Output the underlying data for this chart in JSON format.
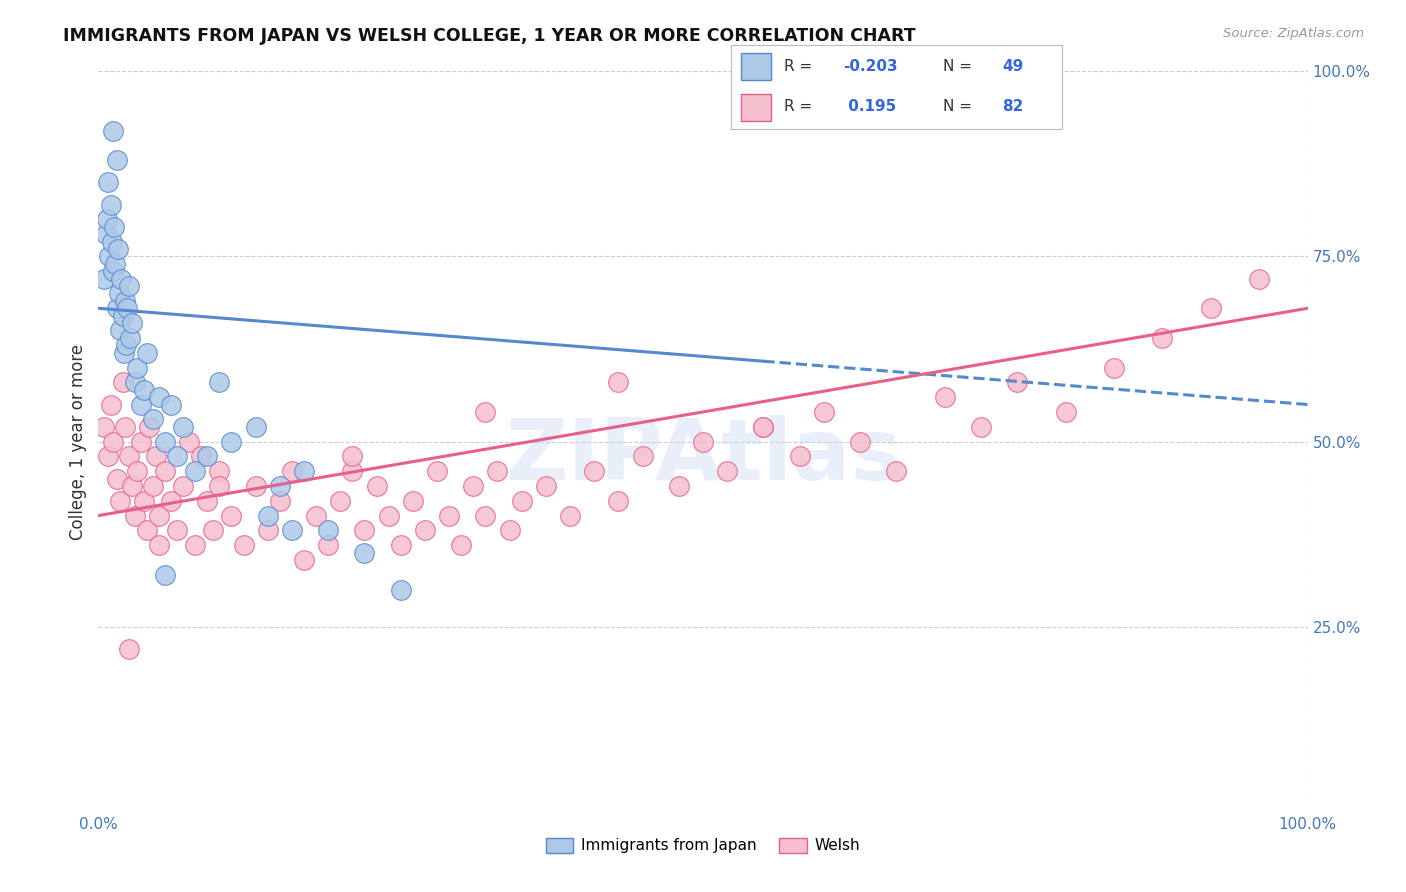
{
  "title": "IMMIGRANTS FROM JAPAN VS WELSH COLLEGE, 1 YEAR OR MORE CORRELATION CHART",
  "source_text": "Source: ZipAtlas.com",
  "ylabel": "College, 1 year or more",
  "xlim": [
    0.0,
    1.0
  ],
  "ylim": [
    0.0,
    1.0
  ],
  "legend_label1": "Immigrants from Japan",
  "legend_label2": "Welsh",
  "R1": -0.203,
  "N1": 49,
  "R2": 0.195,
  "N2": 82,
  "color1": "#adc9e8",
  "color2": "#f5bfce",
  "line_color1": "#5588cc",
  "line_color2": "#e8608a",
  "watermark": "ZIPAtlas",
  "background_color": "#ffffff",
  "grid_color": "#cccccc",
  "japan_x": [
    0.005,
    0.006,
    0.007,
    0.008,
    0.009,
    0.01,
    0.011,
    0.012,
    0.013,
    0.014,
    0.015,
    0.016,
    0.017,
    0.018,
    0.019,
    0.02,
    0.021,
    0.022,
    0.023,
    0.024,
    0.025,
    0.026,
    0.028,
    0.03,
    0.032,
    0.035,
    0.038,
    0.04,
    0.045,
    0.05,
    0.055,
    0.06,
    0.065,
    0.07,
    0.08,
    0.09,
    0.1,
    0.11,
    0.13,
    0.15,
    0.17,
    0.19,
    0.22,
    0.25,
    0.14,
    0.16,
    0.055,
    0.015,
    0.012
  ],
  "japan_y": [
    0.72,
    0.78,
    0.8,
    0.85,
    0.75,
    0.82,
    0.77,
    0.73,
    0.79,
    0.74,
    0.68,
    0.76,
    0.7,
    0.65,
    0.72,
    0.67,
    0.62,
    0.69,
    0.63,
    0.68,
    0.71,
    0.64,
    0.66,
    0.58,
    0.6,
    0.55,
    0.57,
    0.62,
    0.53,
    0.56,
    0.5,
    0.55,
    0.48,
    0.52,
    0.46,
    0.48,
    0.58,
    0.5,
    0.52,
    0.44,
    0.46,
    0.38,
    0.35,
    0.3,
    0.4,
    0.38,
    0.32,
    0.88,
    0.92
  ],
  "welsh_x": [
    0.005,
    0.008,
    0.01,
    0.012,
    0.015,
    0.018,
    0.02,
    0.022,
    0.025,
    0.028,
    0.03,
    0.032,
    0.035,
    0.038,
    0.04,
    0.042,
    0.045,
    0.048,
    0.05,
    0.055,
    0.06,
    0.065,
    0.07,
    0.075,
    0.08,
    0.085,
    0.09,
    0.095,
    0.1,
    0.11,
    0.12,
    0.13,
    0.14,
    0.15,
    0.16,
    0.17,
    0.18,
    0.19,
    0.2,
    0.21,
    0.22,
    0.23,
    0.24,
    0.25,
    0.26,
    0.27,
    0.28,
    0.29,
    0.3,
    0.31,
    0.32,
    0.33,
    0.34,
    0.35,
    0.37,
    0.39,
    0.41,
    0.43,
    0.45,
    0.48,
    0.5,
    0.52,
    0.55,
    0.58,
    0.6,
    0.63,
    0.66,
    0.7,
    0.73,
    0.76,
    0.8,
    0.84,
    0.88,
    0.92,
    0.96,
    0.55,
    0.43,
    0.32,
    0.21,
    0.1,
    0.05,
    0.025
  ],
  "welsh_y": [
    0.52,
    0.48,
    0.55,
    0.5,
    0.45,
    0.42,
    0.58,
    0.52,
    0.48,
    0.44,
    0.4,
    0.46,
    0.5,
    0.42,
    0.38,
    0.52,
    0.44,
    0.48,
    0.4,
    0.46,
    0.42,
    0.38,
    0.44,
    0.5,
    0.36,
    0.48,
    0.42,
    0.38,
    0.46,
    0.4,
    0.36,
    0.44,
    0.38,
    0.42,
    0.46,
    0.34,
    0.4,
    0.36,
    0.42,
    0.46,
    0.38,
    0.44,
    0.4,
    0.36,
    0.42,
    0.38,
    0.46,
    0.4,
    0.36,
    0.44,
    0.4,
    0.46,
    0.38,
    0.42,
    0.44,
    0.4,
    0.46,
    0.42,
    0.48,
    0.44,
    0.5,
    0.46,
    0.52,
    0.48,
    0.54,
    0.5,
    0.46,
    0.56,
    0.52,
    0.58,
    0.54,
    0.6,
    0.64,
    0.68,
    0.72,
    0.52,
    0.58,
    0.54,
    0.48,
    0.44,
    0.36,
    0.22
  ]
}
